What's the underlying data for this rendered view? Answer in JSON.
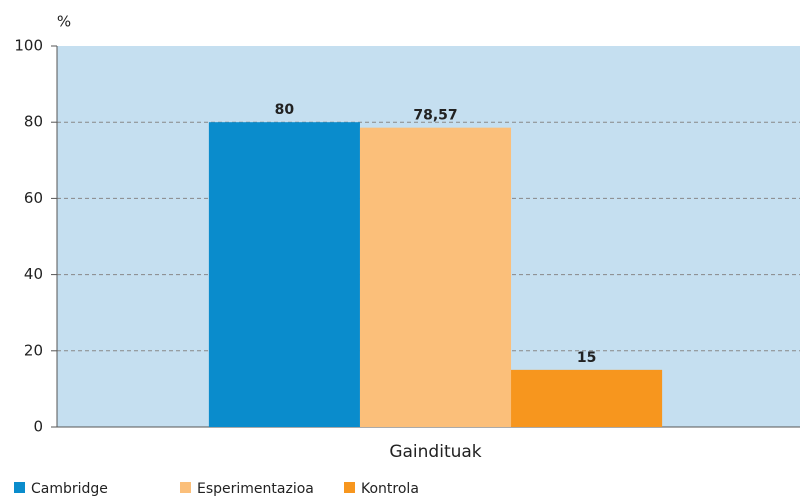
{
  "chart_data": {
    "type": "bar",
    "ylabel": "%",
    "categories": [
      "Gaindituak"
    ],
    "series": [
      {
        "name": "Cambridge",
        "color": "#0a8ccc",
        "values": [
          80
        ]
      },
      {
        "name": "Esperimentazioa",
        "color": "#fbbf7a",
        "values": [
          78.57
        ],
        "value_labels": [
          "78,57"
        ]
      },
      {
        "name": "Kontrola",
        "color": "#f7961e",
        "values": [
          15
        ]
      }
    ],
    "ylim": [
      0,
      100
    ],
    "yticks": [
      0,
      20,
      40,
      60,
      80,
      100
    ],
    "grid": true,
    "legend": "bottom-left",
    "background": "#c5dff0"
  }
}
